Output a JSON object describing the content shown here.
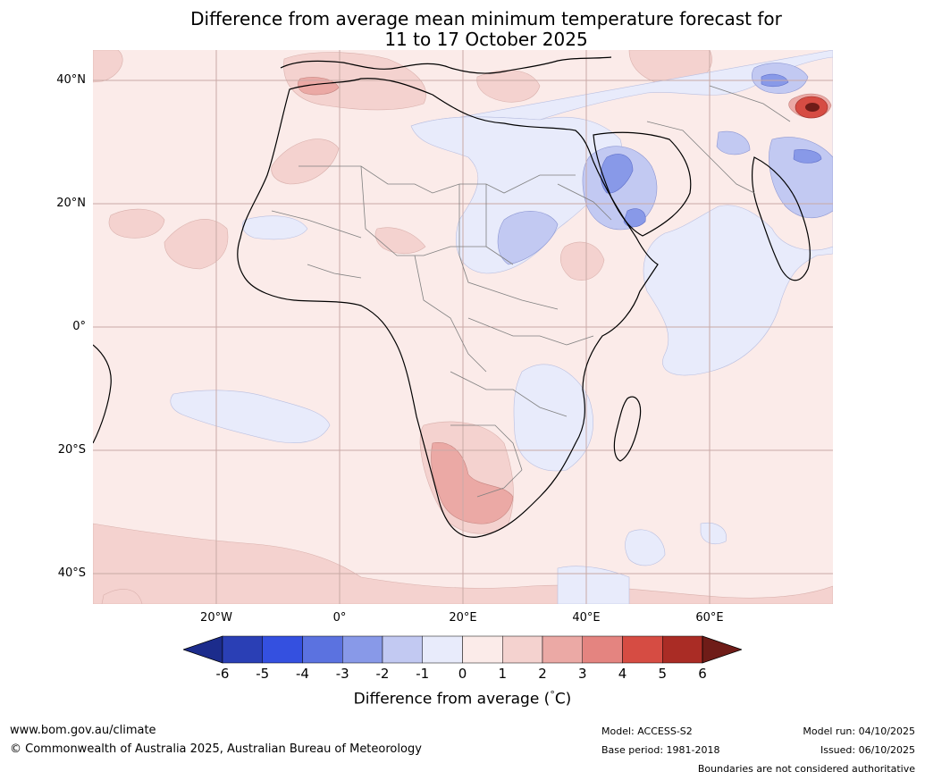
{
  "title": {
    "line1": "Difference from average mean minimum temperature forecast for",
    "line2": "11 to 17 October 2025"
  },
  "map": {
    "lat_ticks": [
      {
        "label": "40°N",
        "lat": 40
      },
      {
        "label": "20°N",
        "lat": 20
      },
      {
        "label": "0°",
        "lat": 0
      },
      {
        "label": "20°S",
        "lat": -20
      },
      {
        "label": "40°S",
        "lat": -40
      }
    ],
    "lon_ticks": [
      {
        "label": "20°W",
        "lon": -20
      },
      {
        "label": "0°",
        "lon": 0
      },
      {
        "label": "20°E",
        "lon": 20
      },
      {
        "label": "40°E",
        "lon": 40
      },
      {
        "label": "60°E",
        "lon": 60
      }
    ],
    "extent": {
      "lon_min": -40,
      "lon_max": 80,
      "lat_min": -45,
      "lat_max": 45
    }
  },
  "colorbar": {
    "ticks": [
      "-6",
      "-5",
      "-4",
      "-3",
      "-2",
      "-1",
      "0",
      "1",
      "2",
      "3",
      "4",
      "5",
      "6"
    ],
    "colors": [
      "#1c2c8c",
      "#2a3fb5",
      "#3450e0",
      "#5b72e0",
      "#8899e8",
      "#c2c9f2",
      "#e8ebfb",
      "#fbebe9",
      "#f4d2cf",
      "#eba9a5",
      "#e48480",
      "#d64c43",
      "#aa2c25",
      "#6f1c18"
    ],
    "label": "Difference from average (°C)",
    "label_prefix": "Difference from average (",
    "label_degree": "°",
    "label_unit": "C)"
  },
  "footer": {
    "website": "www.bom.gov.au/climate",
    "copyright": "© Commonwealth of Australia 2025, Australian Bureau of Meteorology",
    "model": "Model: ACCESS-S2",
    "base_period": "Base period: 1981-2018",
    "model_run": "Model run: 04/10/2025",
    "issued": "Issued: 06/10/2025",
    "disclaimer": "Boundaries are not considered authoritative"
  }
}
